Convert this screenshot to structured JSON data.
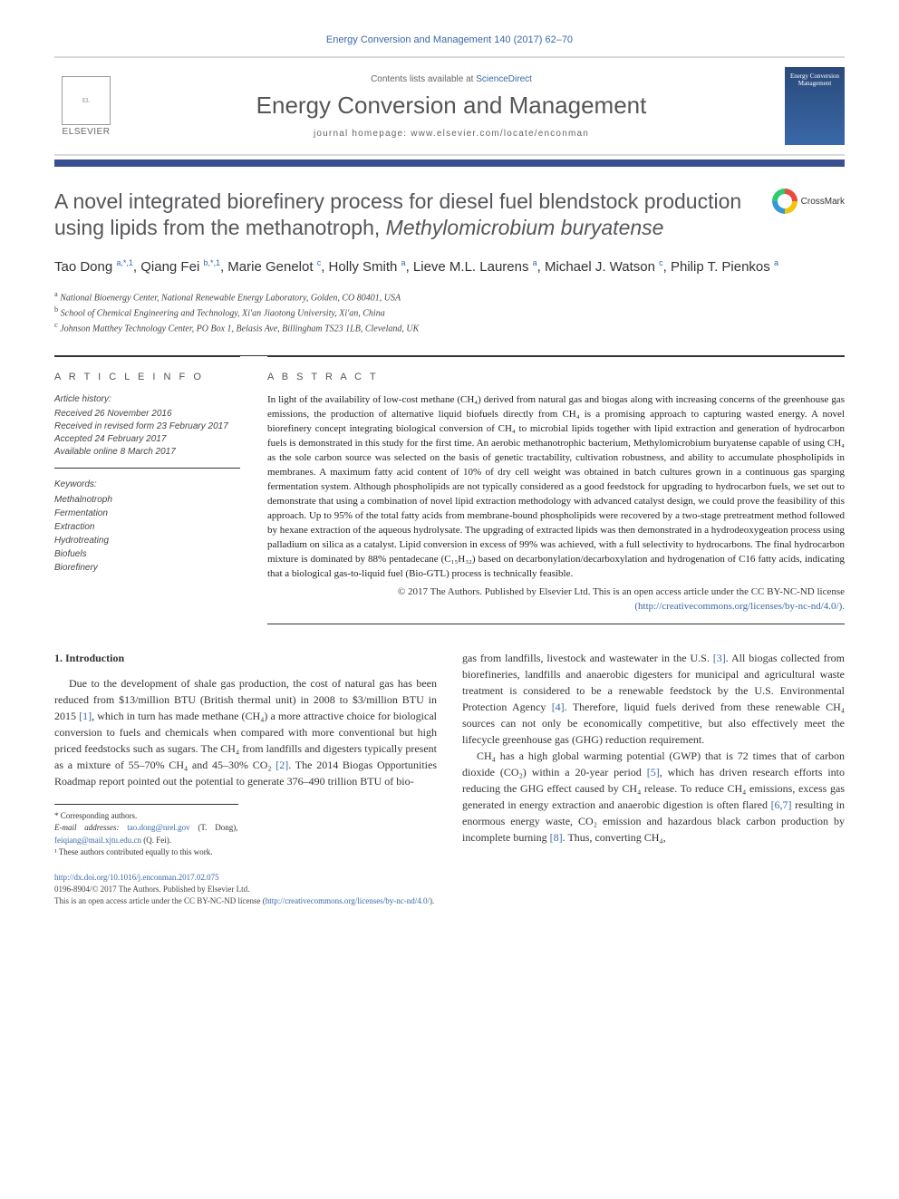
{
  "citation": "Energy Conversion and Management 140 (2017) 62–70",
  "header": {
    "contents_prefix": "Contents lists available at ",
    "contents_link": "ScienceDirect",
    "journal_name": "Energy Conversion and Management",
    "homepage_prefix": "journal homepage: ",
    "homepage_url": "www.elsevier.com/locate/enconman",
    "publisher": "ELSEVIER",
    "cover_text": "Energy Conversion Management"
  },
  "title": {
    "main": "A novel integrated biorefinery process for diesel fuel blendstock production using lipids from the methanotroph, ",
    "italic": "Methylomicrobium buryatense"
  },
  "crossmark_label": "CrossMark",
  "authors_html": "Tao Dong <sup>a,*,1</sup>, Qiang Fei <sup>b,*,1</sup>, Marie Genelot <sup>c</sup>, Holly Smith <sup>a</sup>, Lieve M.L. Laurens <sup>a</sup>, Michael J. Watson <sup>c</sup>, Philip T. Pienkos <sup>a</sup>",
  "affiliations": [
    "a National Bioenergy Center, National Renewable Energy Laboratory, Golden, CO 80401, USA",
    "b School of Chemical Engineering and Technology, Xi'an Jiaotong University, Xi'an, China",
    "c Johnson Matthey Technology Center, PO Box 1, Belasis Ave, Billingham TS23 1LB, Cleveland, UK"
  ],
  "article_info": {
    "heading": "A R T I C L E   I N F O",
    "history_label": "Article history:",
    "history": [
      "Received 26 November 2016",
      "Received in revised form 23 February 2017",
      "Accepted 24 February 2017",
      "Available online 8 March 2017"
    ],
    "keywords_label": "Keywords:",
    "keywords": [
      "Methalnotroph",
      "Fermentation",
      "Extraction",
      "Hydrotreating",
      "Biofuels",
      "Biorefinery"
    ]
  },
  "abstract": {
    "heading": "A B S T R A C T",
    "text": "In light of the availability of low-cost methane (CH₄) derived from natural gas and biogas along with increasing concerns of the greenhouse gas emissions, the production of alternative liquid biofuels directly from CH₄ is a promising approach to capturing wasted energy. A novel biorefinery concept integrating biological conversion of CH₄ to microbial lipids together with lipid extraction and generation of hydrocarbon fuels is demonstrated in this study for the first time. An aerobic methanotrophic bacterium, Methylomicrobium buryatense capable of using CH₄ as the sole carbon source was selected on the basis of genetic tractability, cultivation robustness, and ability to accumulate phospholipids in membranes. A maximum fatty acid content of 10% of dry cell weight was obtained in batch cultures grown in a continuous gas sparging fermentation system. Although phospholipids are not typically considered as a good feedstock for upgrading to hydrocarbon fuels, we set out to demonstrate that using a combination of novel lipid extraction methodology with advanced catalyst design, we could prove the feasibility of this approach. Up to 95% of the total fatty acids from membrane-bound phospholipids were recovered by a two-stage pretreatment method followed by hexane extraction of the aqueous hydrolysate. The upgrading of extracted lipids was then demonstrated in a hydrodeoxygeation process using palladium on silica as a catalyst. Lipid conversion in excess of 99% was achieved, with a full selectivity to hydrocarbons. The final hydrocarbon mixture is dominated by 88% pentadecane (C₁₅H₃₂) based on decarbonylation/decarboxylation and hydrogenation of C16 fatty acids, indicating that a biological gas-to-liquid fuel (Bio-GTL) process is technically feasible.",
    "copyright": "© 2017 The Authors. Published by Elsevier Ltd. This is an open access article under the CC BY-NC-ND license",
    "license_url": "(http://creativecommons.org/licenses/by-nc-nd/4.0/)."
  },
  "body": {
    "section_heading": "1. Introduction",
    "col1_p1": "Due to the development of shale gas production, the cost of natural gas has been reduced from $13/million BTU (British thermal unit) in 2008 to $3/million BTU in 2015 [1], which in turn has made methane (CH₄) a more attractive choice for biological conversion to fuels and chemicals when compared with more conventional but high priced feedstocks such as sugars. The CH₄ from landfills and digesters typically present as a mixture of 55–70% CH₄ and 45–30% CO₂ [2]. The 2014 Biogas Opportunities Roadmap report pointed out the potential to generate 376–490 trillion BTU of bio-",
    "col2_p1": "gas from landfills, livestock and wastewater in the U.S. [3]. All biogas collected from biorefineries, landfills and anaerobic digesters for municipal and agricultural waste treatment is considered to be a renewable feedstock by the U.S. Environmental Protection Agency [4]. Therefore, liquid fuels derived from these renewable CH₄ sources can not only be economically competitive, but also effectively meet the lifecycle greenhouse gas (GHG) reduction requirement.",
    "col2_p2": "CH₄ has a high global warming potential (GWP) that is 72 times that of carbon dioxide (CO₂) within a 20-year period [5], which has driven research efforts into reducing the GHG effect caused by CH₄ release. To reduce CH₄ emissions, excess gas generated in energy extraction and anaerobic digestion is often flared [6,7] resulting in enormous energy waste, CO₂ emission and hazardous black carbon production by incomplete burning [8]. Thus, converting CH₄,"
  },
  "refs": {
    "r1": "[1]",
    "r2": "[2]",
    "r3": "[3]",
    "r4": "[4]",
    "r5": "[5]",
    "r67": "[6,7]",
    "r8": "[8]"
  },
  "footnotes": {
    "corr": "* Corresponding authors.",
    "email_label": "E-mail addresses: ",
    "email1": "tao.dong@nrel.gov",
    "email1_who": " (T. Dong), ",
    "email2": "feiqiang@mail.xjtu.edu.cn",
    "email2_who": " (Q. Fei).",
    "equal": "¹ These authors contributed equally to this work."
  },
  "bottom": {
    "doi": "http://dx.doi.org/10.1016/j.enconman.2017.02.075",
    "issn_line": "0196-8904/© 2017 The Authors. Published by Elsevier Ltd.",
    "license_line": "This is an open access article under the CC BY-NC-ND license (",
    "license_url": "http://creativecommons.org/licenses/by-nc-nd/4.0/",
    "license_close": ")."
  },
  "colors": {
    "link": "#3968a8",
    "rule": "#3a4f8f",
    "heading_gray": "#56565a"
  }
}
